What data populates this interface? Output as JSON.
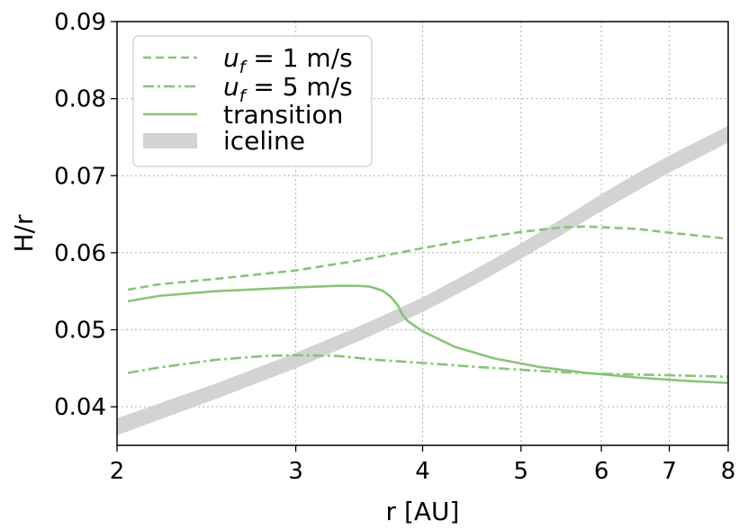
{
  "chart_data": {
    "type": "line",
    "title": "",
    "xlabel": "r [AU]",
    "ylabel": "H/r",
    "xscale": "log",
    "xlim": [
      2,
      8
    ],
    "ylim": [
      0.035,
      0.09
    ],
    "xticks": [
      2,
      3,
      4,
      5,
      6,
      7,
      8
    ],
    "xtick_labels": [
      "2",
      "3",
      "4",
      "5",
      "6",
      "7",
      "8"
    ],
    "yticks": [
      0.04,
      0.05,
      0.06,
      0.07,
      0.08,
      0.09
    ],
    "ytick_labels": [
      "0.04",
      "0.05",
      "0.06",
      "0.07",
      "0.08",
      "0.09"
    ],
    "grid": true,
    "legend_position": "upper-left",
    "line_color": "#88c47a",
    "band_color": "#d3d3d3",
    "legend": {
      "uf_symbol": "u",
      "uf_subscript": "f",
      "uf1_value": " = 1 m/s",
      "uf5_value": " = 5 m/s",
      "transition": "transition",
      "iceline": "iceline"
    },
    "series": [
      {
        "id": "uf1",
        "style": "dashed",
        "x": [
          2.05,
          2.2,
          2.5,
          3.0,
          3.5,
          4.0,
          4.5,
          5.0,
          5.5,
          5.8,
          6.0,
          6.5,
          7.0,
          7.5,
          8.0
        ],
        "y": [
          0.0552,
          0.0559,
          0.0566,
          0.0577,
          0.0591,
          0.0606,
          0.0618,
          0.0627,
          0.0633,
          0.0634,
          0.0633,
          0.0631,
          0.0626,
          0.0622,
          0.0618
        ]
      },
      {
        "id": "uf5",
        "style": "dashdot",
        "x": [
          2.05,
          2.2,
          2.5,
          2.8,
          3.0,
          3.3,
          3.6,
          4.0,
          4.5,
          5.0,
          5.5,
          6.0,
          7.0,
          8.0
        ],
        "y": [
          0.0444,
          0.0451,
          0.0461,
          0.0466,
          0.0467,
          0.0466,
          0.0461,
          0.0457,
          0.0452,
          0.0448,
          0.0445,
          0.0443,
          0.0441,
          0.0439
        ]
      },
      {
        "id": "transition",
        "style": "solid",
        "x": [
          2.05,
          2.2,
          2.5,
          3.0,
          3.3,
          3.45,
          3.55,
          3.65,
          3.72,
          3.78,
          3.82,
          3.87,
          4.0,
          4.3,
          4.7,
          5.2,
          5.8,
          6.5,
          7.2,
          8.0
        ],
        "y": [
          0.0537,
          0.0544,
          0.055,
          0.0555,
          0.0557,
          0.0557,
          0.0556,
          0.0551,
          0.0543,
          0.0532,
          0.052,
          0.0511,
          0.0498,
          0.0478,
          0.0463,
          0.0452,
          0.0444,
          0.0438,
          0.0434,
          0.0431
        ]
      }
    ],
    "band": {
      "id": "iceline",
      "x": [
        2.0,
        2.5,
        3.0,
        3.5,
        4.0,
        4.5,
        5.0,
        5.5,
        6.0,
        6.5,
        7.0,
        7.5,
        8.0
      ],
      "y_lower": [
        0.0363,
        0.041,
        0.045,
        0.0488,
        0.0523,
        0.0558,
        0.0592,
        0.0624,
        0.0654,
        0.068,
        0.0704,
        0.0724,
        0.0743
      ],
      "y_upper": [
        0.0385,
        0.043,
        0.047,
        0.0507,
        0.0542,
        0.0578,
        0.0612,
        0.0645,
        0.0676,
        0.0703,
        0.0726,
        0.0746,
        0.0765
      ]
    }
  }
}
